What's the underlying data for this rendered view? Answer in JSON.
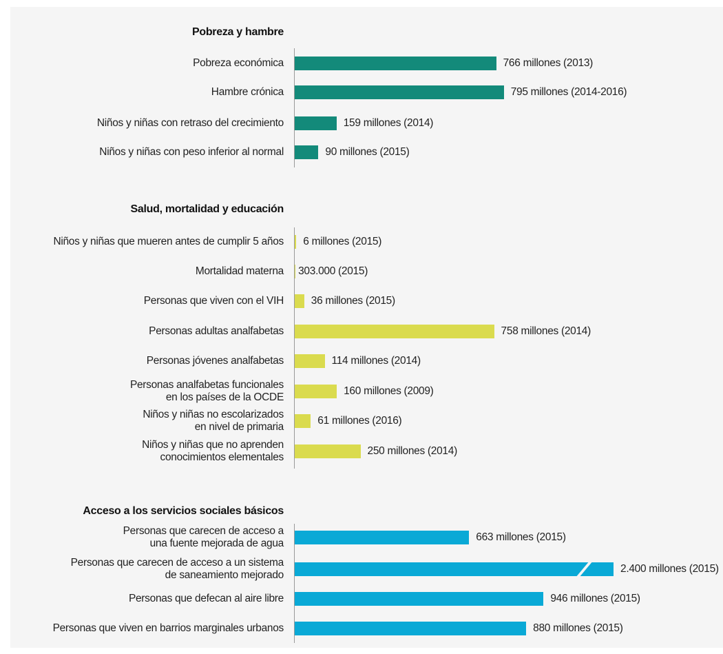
{
  "chart_data": [
    {
      "type": "bar",
      "title": "Pobreza y hambre",
      "color": "#138a7a",
      "categories": [
        "Pobreza económica",
        "Hambre crónica",
        "Niños y niñas con retraso del crecimiento",
        "Niños y niñas con peso inferior al normal"
      ],
      "values": [
        766,
        795,
        159,
        90
      ],
      "value_labels": [
        "766 millones (2013)",
        "795 millones (2014-2016)",
        "159 millones (2014)",
        "90 millones (2015)"
      ]
    },
    {
      "type": "bar",
      "title": "Salud, mortalidad y educación",
      "color": "#dadb4e",
      "categories": [
        "Niños y niñas que mueren antes de cumplir 5 años",
        "Mortalidad materna",
        "Personas que viven con el VIH",
        "Personas adultas analfabetas",
        "Personas jóvenes analfabetas",
        "Personas analfabetas funcionales\nen los países de la OCDE",
        "Niños y niñas no escolarizados\nen nivel de primaria",
        "Niños y niñas que no aprenden\nconocimientos elementales"
      ],
      "values": [
        6,
        0.303,
        36,
        758,
        114,
        160,
        61,
        250
      ],
      "value_labels": [
        "6 millones (2015)",
        "303.000 (2015)",
        "36 millones (2015)",
        "758 millones (2014)",
        "114 millones (2014)",
        "160 millones (2009)",
        "61 millones (2016)",
        "250 millones (2014)"
      ]
    },
    {
      "type": "bar",
      "title": "Acceso a los servicios sociales básicos",
      "color": "#0aa9d6",
      "categories": [
        "Personas que carecen de acceso a\nuna fuente mejorada de agua",
        "Personas que carecen de acceso a un sistema\nde saneamiento mejorado",
        "Personas que defecan al aire libre",
        "Personas que viven en barrios marginales urbanos"
      ],
      "values": [
        663,
        2400,
        946,
        880
      ],
      "value_labels": [
        "663 millones (2015)",
        "2.400 millones (2015)",
        "946 millones (2015)",
        "880 millones (2015)"
      ]
    }
  ]
}
